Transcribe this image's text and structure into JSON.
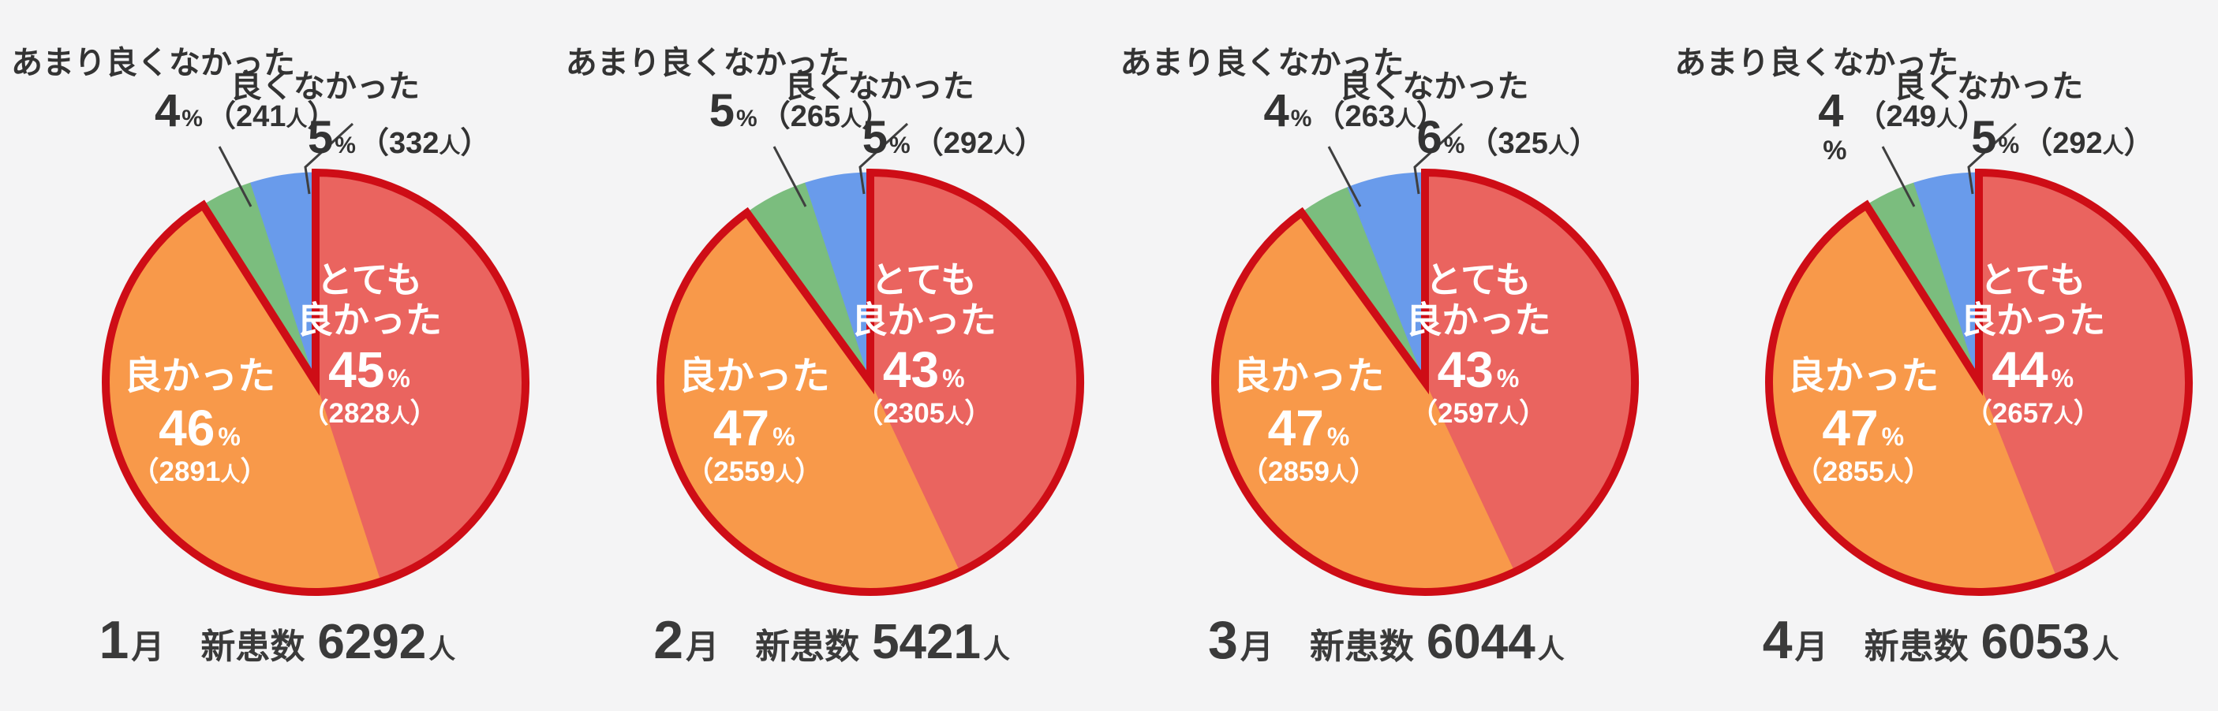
{
  "colors": {
    "background": "#f4f4f5",
    "very_good": "#ea645f",
    "good": "#f8994a",
    "not_very_good": "#7bbd7e",
    "not_good": "#699beb",
    "highlight_stroke": "#ce0d16",
    "text_dark": "#333333",
    "text_on_slice": "#ffffff",
    "footer_text": "#3a3a3a",
    "leader_line": "#3f3f3f"
  },
  "strings": {
    "month_suffix": "月",
    "total_label": "新患数",
    "unit_people": "人",
    "percent": "%",
    "paren_open": "（",
    "paren_close": "）"
  },
  "chart_data": {
    "type": "pie",
    "slice_order_clockwise_from_top": [
      "very_good",
      "good",
      "not_very_good",
      "not_good"
    ],
    "legend": {
      "very_good": "とても良かった",
      "very_good_line1": "とても",
      "very_good_line2": "良かった",
      "good": "良かった",
      "not_very_good": "あまり良くなかった",
      "not_good": "良くなかった"
    },
    "charts": [
      {
        "month": 1,
        "total": 6292,
        "very_good": {
          "pct": 45,
          "count": 2828
        },
        "good": {
          "pct": 46,
          "count": 2891
        },
        "not_very_good": {
          "pct": 4,
          "count": 241
        },
        "not_good": {
          "pct": 5,
          "count": 332
        }
      },
      {
        "month": 2,
        "total": 5421,
        "very_good": {
          "pct": 43,
          "count": 2305
        },
        "good": {
          "pct": 47,
          "count": 2559
        },
        "not_very_good": {
          "pct": 5,
          "count": 265
        },
        "not_good": {
          "pct": 5,
          "count": 292
        }
      },
      {
        "month": 3,
        "total": 6044,
        "very_good": {
          "pct": 43,
          "count": 2597
        },
        "good": {
          "pct": 47,
          "count": 2859
        },
        "not_very_good": {
          "pct": 4,
          "count": 263
        },
        "not_good": {
          "pct": 6,
          "count": 325
        }
      },
      {
        "month": 4,
        "total": 6053,
        "very_good": {
          "pct": 44,
          "count": 2657
        },
        "good": {
          "pct": 47,
          "count": 2855
        },
        "not_very_good": {
          "pct": 4,
          "count": 249,
          "percent_wrapped": true
        },
        "not_good": {
          "pct": 5,
          "count": 292
        }
      }
    ]
  }
}
